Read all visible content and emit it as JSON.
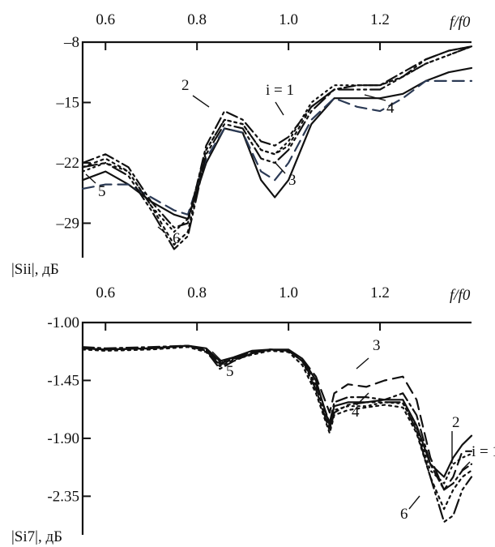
{
  "chart_data": [
    {
      "type": "line",
      "xlabel": "f/f0",
      "ylabel": "|Sii|, дБ",
      "xlim": [
        0.55,
        1.4
      ],
      "ylim": [
        -33,
        -8
      ],
      "xticks": [
        0.6,
        0.8,
        1.0,
        1.2
      ],
      "xtick_labels": [
        "0.6",
        "0.8",
        "1.0",
        "1.2"
      ],
      "yticks": [
        -8,
        -15,
        -22,
        -29
      ],
      "ytick_labels": [
        "–8",
        "–15",
        "–22",
        "–29"
      ],
      "annotations": [
        "3",
        "4",
        "2",
        "i = 1",
        "6",
        "5"
      ],
      "series": [
        {
          "name": "i = 1",
          "x": [
            0.55,
            0.6,
            0.65,
            0.7,
            0.75,
            0.78,
            0.82,
            0.86,
            0.9,
            0.94,
            0.97,
            1.0,
            1.05,
            1.1,
            1.15,
            1.2,
            1.25,
            1.3,
            1.35,
            1.4
          ],
          "y": [
            -24,
            -23,
            -24.5,
            -26.5,
            -28,
            -28.5,
            -22,
            -18,
            -18.5,
            -24,
            -26,
            -24,
            -17.5,
            -14.5,
            -14.5,
            -14.5,
            -14,
            -12.5,
            -11.5,
            -11
          ]
        },
        {
          "name": "2",
          "x": [
            0.55,
            0.6,
            0.65,
            0.7,
            0.75,
            0.78,
            0.82,
            0.86,
            0.9,
            0.94,
            0.97,
            1.0,
            1.05,
            1.1,
            1.15,
            1.2,
            1.25,
            1.3,
            1.35,
            1.4
          ],
          "y": [
            -25,
            -24.5,
            -24.5,
            -26,
            -27.5,
            -28,
            -21.5,
            -18,
            -18.5,
            -23,
            -24,
            -22,
            -17,
            -14.5,
            -15.5,
            -16,
            -14.5,
            -12.5,
            -12.5,
            -12.5
          ]
        },
        {
          "name": "3",
          "x": [
            0.55,
            0.6,
            0.65,
            0.7,
            0.75,
            0.78,
            0.82,
            0.86,
            0.9,
            0.94,
            0.97,
            1.0,
            1.05,
            1.1,
            1.15,
            1.2,
            1.25,
            1.3,
            1.35,
            1.4
          ],
          "y": [
            -22,
            -21,
            -22.5,
            -26.5,
            -29.5,
            -29,
            -20,
            -16,
            -17,
            -19.5,
            -20,
            -19,
            -15.5,
            -13.5,
            -13,
            -13,
            -11.5,
            -10,
            -9,
            -8.5
          ]
        },
        {
          "name": "4",
          "x": [
            0.55,
            0.6,
            0.65,
            0.7,
            0.75,
            0.78,
            0.82,
            0.86,
            0.9,
            0.94,
            0.97,
            1.0,
            1.05,
            1.1,
            1.15,
            1.2,
            1.25,
            1.3,
            1.35,
            1.4
          ],
          "y": [
            -23,
            -22,
            -23,
            -27,
            -30,
            -28.5,
            -20.5,
            -17,
            -17.5,
            -20.5,
            -21,
            -19.5,
            -15,
            -13,
            -13,
            -13,
            -12,
            -10.5,
            -9.5,
            -8.5
          ]
        },
        {
          "name": "5",
          "x": [
            0.55,
            0.6,
            0.65,
            0.7,
            0.75,
            0.78,
            0.82,
            0.86,
            0.9,
            0.94,
            0.97,
            1.0,
            1.05,
            1.1,
            1.15,
            1.2,
            1.25,
            1.3,
            1.35,
            1.4
          ],
          "y": [
            -22.5,
            -21.5,
            -23,
            -27,
            -31.5,
            -30,
            -20.5,
            -17,
            -17.5,
            -20.5,
            -21,
            -20,
            -15.5,
            -13.5,
            -13,
            -13,
            -12,
            -10.5,
            -9.5,
            -8.5
          ]
        },
        {
          "name": "6",
          "x": [
            0.55,
            0.6,
            0.65,
            0.7,
            0.75,
            0.78,
            0.82,
            0.86,
            0.9,
            0.94,
            0.97,
            1.0,
            1.05,
            1.1,
            1.15,
            1.2,
            1.25,
            1.3,
            1.35,
            1.4
          ],
          "y": [
            -22.5,
            -22,
            -23.5,
            -27.5,
            -32,
            -30.5,
            -21,
            -17.5,
            -18,
            -21.5,
            -22,
            -20.5,
            -16,
            -13.5,
            -13.5,
            -13.5,
            -12,
            -10,
            -9,
            -8.5
          ]
        }
      ]
    },
    {
      "type": "line",
      "xlabel": "f/f0",
      "ylabel": "|Si7|, дБ",
      "xlim": [
        0.55,
        1.4
      ],
      "ylim": [
        -2.65,
        -1.0
      ],
      "xticks": [
        0.6,
        0.8,
        1.0,
        1.2
      ],
      "xtick_labels": [
        "0.6",
        "0.8",
        "1.0",
        "1.2"
      ],
      "yticks": [
        -1.0,
        -1.45,
        -1.9,
        -2.35
      ],
      "ytick_labels": [
        "-1.00",
        "-1.45",
        "-1.90",
        "-2.35"
      ],
      "annotations": [
        "2",
        "3",
        "5",
        "i = 1",
        "4",
        "6"
      ],
      "series": [
        {
          "name": "i = 1",
          "x": [
            0.55,
            0.6,
            0.7,
            0.78,
            0.82,
            0.85,
            0.88,
            0.92,
            0.96,
            1.0,
            1.03,
            1.06,
            1.09,
            1.1,
            1.13,
            1.17,
            1.21,
            1.25,
            1.28,
            1.31,
            1.34,
            1.36,
            1.38,
            1.4
          ],
          "y": [
            -1.2,
            -1.21,
            -1.2,
            -1.18,
            -1.2,
            -1.3,
            -1.27,
            -1.22,
            -1.21,
            -1.21,
            -1.28,
            -1.45,
            -1.8,
            -1.65,
            -1.62,
            -1.62,
            -1.6,
            -1.6,
            -1.8,
            -2.1,
            -2.2,
            -2.05,
            -1.95,
            -1.88
          ]
        },
        {
          "name": "2",
          "x": [
            0.55,
            0.6,
            0.7,
            0.78,
            0.82,
            0.85,
            0.88,
            0.92,
            0.96,
            1.0,
            1.03,
            1.06,
            1.09,
            1.1,
            1.13,
            1.17,
            1.21,
            1.25,
            1.28,
            1.31,
            1.34,
            1.36,
            1.38,
            1.4
          ],
          "y": [
            -1.2,
            -1.21,
            -1.2,
            -1.18,
            -1.21,
            -1.32,
            -1.28,
            -1.23,
            -1.21,
            -1.22,
            -1.28,
            -1.42,
            -1.7,
            -1.55,
            -1.48,
            -1.5,
            -1.45,
            -1.42,
            -1.6,
            -2.05,
            -2.3,
            -2.2,
            -2.0,
            -2.0
          ]
        },
        {
          "name": "3",
          "x": [
            0.55,
            0.6,
            0.7,
            0.78,
            0.82,
            0.85,
            0.88,
            0.92,
            0.96,
            1.0,
            1.03,
            1.06,
            1.09,
            1.1,
            1.13,
            1.17,
            1.21,
            1.25,
            1.28,
            1.31,
            1.34,
            1.36,
            1.38,
            1.4
          ],
          "y": [
            -1.19,
            -1.2,
            -1.19,
            -1.18,
            -1.22,
            -1.36,
            -1.3,
            -1.24,
            -1.21,
            -1.22,
            -1.3,
            -1.48,
            -1.78,
            -1.62,
            -1.58,
            -1.58,
            -1.6,
            -1.55,
            -1.72,
            -2.1,
            -2.3,
            -2.25,
            -2.15,
            -2.1
          ]
        },
        {
          "name": "4",
          "x": [
            0.55,
            0.6,
            0.7,
            0.78,
            0.82,
            0.85,
            0.88,
            0.92,
            0.96,
            1.0,
            1.03,
            1.06,
            1.09,
            1.1,
            1.13,
            1.17,
            1.21,
            1.25,
            1.28,
            1.31,
            1.34,
            1.36,
            1.38,
            1.4
          ],
          "y": [
            -1.2,
            -1.21,
            -1.2,
            -1.18,
            -1.21,
            -1.31,
            -1.27,
            -1.23,
            -1.21,
            -1.22,
            -1.3,
            -1.5,
            -1.82,
            -1.68,
            -1.65,
            -1.65,
            -1.62,
            -1.63,
            -1.82,
            -2.15,
            -2.25,
            -2.1,
            -2.05,
            -2.02
          ]
        },
        {
          "name": "5",
          "x": [
            0.55,
            0.6,
            0.7,
            0.78,
            0.82,
            0.85,
            0.88,
            0.92,
            0.96,
            1.0,
            1.03,
            1.06,
            1.09,
            1.1,
            1.13,
            1.17,
            1.21,
            1.25,
            1.28,
            1.31,
            1.34,
            1.36,
            1.38,
            1.4
          ],
          "y": [
            -1.21,
            -1.22,
            -1.21,
            -1.19,
            -1.23,
            -1.34,
            -1.29,
            -1.25,
            -1.22,
            -1.23,
            -1.33,
            -1.55,
            -1.86,
            -1.72,
            -1.68,
            -1.66,
            -1.64,
            -1.66,
            -1.86,
            -2.2,
            -2.45,
            -2.3,
            -2.2,
            -2.15
          ]
        },
        {
          "name": "6",
          "x": [
            0.55,
            0.6,
            0.7,
            0.78,
            0.82,
            0.85,
            0.88,
            0.92,
            0.96,
            1.0,
            1.03,
            1.06,
            1.09,
            1.1,
            1.13,
            1.17,
            1.21,
            1.25,
            1.28,
            1.31,
            1.34,
            1.36,
            1.38,
            1.4
          ],
          "y": [
            -1.2,
            -1.21,
            -1.2,
            -1.18,
            -1.22,
            -1.33,
            -1.28,
            -1.24,
            -1.21,
            -1.22,
            -1.3,
            -1.52,
            -1.84,
            -1.7,
            -1.64,
            -1.62,
            -1.62,
            -1.62,
            -1.84,
            -2.2,
            -2.55,
            -2.5,
            -2.3,
            -2.2
          ]
        }
      ]
    }
  ]
}
